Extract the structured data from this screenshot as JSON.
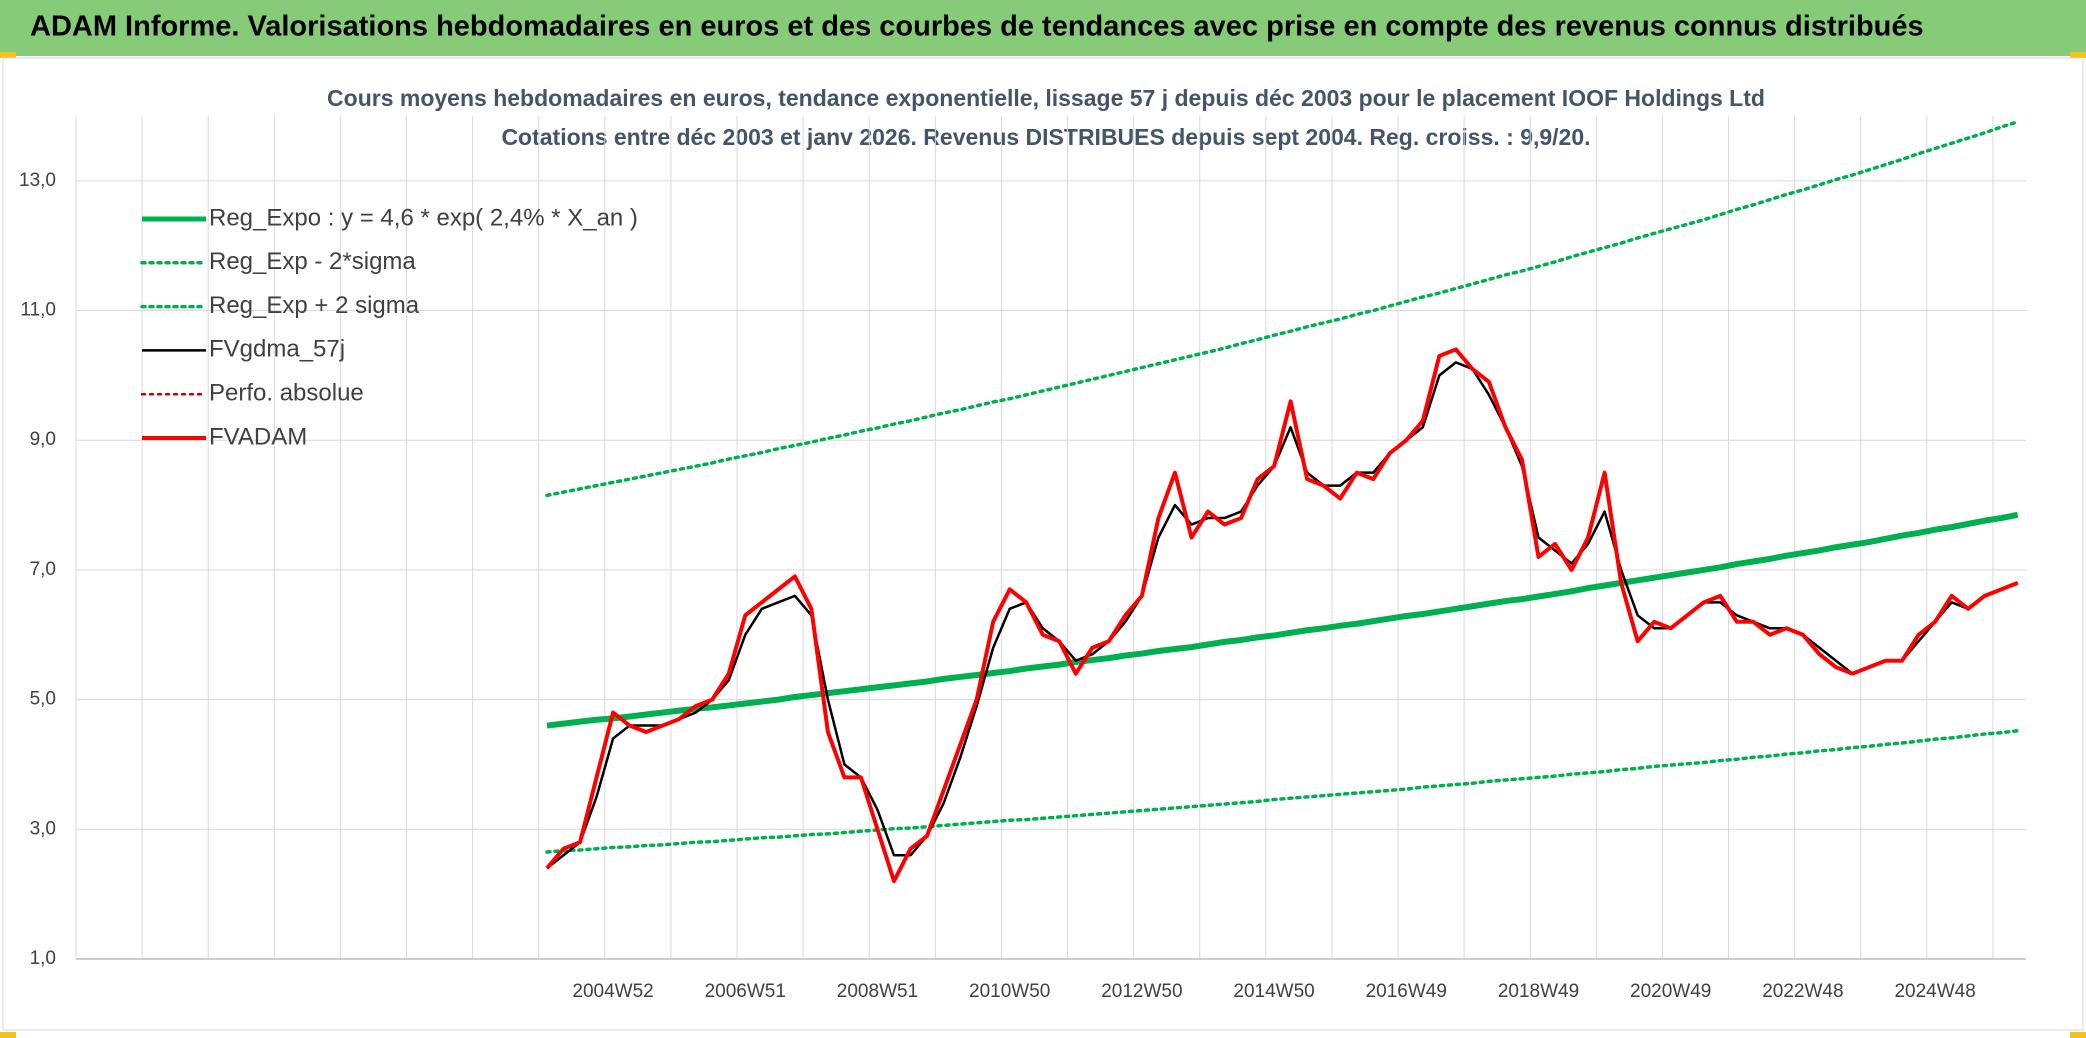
{
  "header": {
    "title": "ADAM Informe. Valorisations hebdomadaires en euros et des courbes de tendances avec prise en compte des revenus connus distribués"
  },
  "chart_data": {
    "type": "line",
    "title": "Cours moyens hebdomadaires en euros, tendance exponentielle, lissage 57 j depuis déc 2003 pour le placement IOOF Holdings Ltd",
    "subtitle": "Cotations entre déc 2003 et janv 2026. Revenus DISTRIBUES depuis sept 2004. Reg. croiss. : 9,9/20.",
    "categories": [
      null,
      null,
      null,
      null,
      null,
      null,
      null,
      null,
      null,
      null,
      null,
      null,
      null,
      null,
      null,
      null,
      null,
      null,
      null,
      null,
      null,
      null,
      null,
      null,
      null,
      null,
      null,
      null,
      null,
      null,
      null,
      null,
      "2004W52",
      null,
      null,
      null,
      null,
      null,
      null,
      null,
      "2006W51",
      null,
      null,
      null,
      null,
      null,
      null,
      null,
      "2008W51",
      null,
      null,
      null,
      null,
      null,
      null,
      null,
      "2010W50",
      null,
      null,
      null,
      null,
      null,
      null,
      null,
      "2012W50",
      null,
      null,
      null,
      null,
      null,
      null,
      null,
      "2014W50",
      null,
      null,
      null,
      null,
      null,
      null,
      null,
      "2016W49",
      null,
      null,
      null,
      null,
      null,
      null,
      null,
      "2018W49",
      null,
      null,
      null,
      null,
      null,
      null,
      null,
      "2020W49",
      null,
      null,
      null,
      null,
      null,
      null,
      null,
      "2022W48",
      null,
      null,
      null,
      null,
      null,
      null,
      null,
      "2024W48",
      null,
      null,
      null,
      null,
      null
    ],
    "ylim": [
      1,
      14
    ],
    "yticks": [
      {
        "value": 1,
        "label": "1,0"
      },
      {
        "value": 3,
        "label": "3,0"
      },
      {
        "value": 5,
        "label": "5,0"
      },
      {
        "value": 7,
        "label": "7,0"
      },
      {
        "value": 9,
        "label": "9,0"
      },
      {
        "value": 11,
        "label": "11,0"
      },
      {
        "value": 13,
        "label": "13,0"
      }
    ],
    "grid": true,
    "series": [
      {
        "name": "Reg_Expo : y = 4,6 * exp( 2,4% *  X_an )",
        "color": "#00b050",
        "style": "solid",
        "width": 6,
        "values": [
          null,
          null,
          null,
          null,
          null,
          null,
          null,
          null,
          null,
          null,
          null,
          null,
          null,
          null,
          null,
          null,
          null,
          null,
          null,
          null,
          null,
          null,
          null,
          null,
          null,
          null,
          null,
          null,
          4.6,
          4.63,
          4.66,
          4.69,
          4.71,
          4.74,
          4.77,
          4.8,
          4.83,
          4.86,
          4.88,
          4.91,
          4.94,
          4.97,
          5.0,
          5.04,
          5.07,
          5.1,
          5.13,
          5.16,
          5.19,
          5.22,
          5.25,
          5.28,
          5.32,
          5.35,
          5.38,
          5.41,
          5.44,
          5.48,
          5.51,
          5.54,
          5.58,
          5.61,
          5.64,
          5.68,
          5.71,
          5.75,
          5.78,
          5.81,
          5.85,
          5.89,
          5.92,
          5.96,
          5.99,
          6.03,
          6.07,
          6.1,
          6.14,
          6.17,
          6.21,
          6.25,
          6.29,
          6.32,
          6.36,
          6.4,
          6.44,
          6.48,
          6.52,
          6.55,
          6.59,
          6.63,
          6.67,
          6.72,
          6.76,
          6.8,
          6.84,
          6.88,
          6.92,
          6.96,
          7.0,
          7.04,
          7.09,
          7.13,
          7.17,
          7.22,
          7.26,
          7.3,
          7.35,
          7.39,
          7.43,
          7.48,
          7.53,
          7.57,
          7.62,
          7.66,
          7.71,
          7.76,
          7.8,
          7.85
        ]
      },
      {
        "name": "Reg_Exp - 2*sigma",
        "color": "#00b050",
        "style": "dotted",
        "width": 3.5,
        "values": [
          null,
          null,
          null,
          null,
          null,
          null,
          null,
          null,
          null,
          null,
          null,
          null,
          null,
          null,
          null,
          null,
          null,
          null,
          null,
          null,
          null,
          null,
          null,
          null,
          null,
          null,
          null,
          null,
          2.65,
          2.67,
          2.68,
          2.7,
          2.72,
          2.73,
          2.75,
          2.76,
          2.78,
          2.8,
          2.81,
          2.83,
          2.85,
          2.87,
          2.88,
          2.9,
          2.92,
          2.93,
          2.95,
          2.97,
          2.99,
          3.01,
          3.02,
          3.04,
          3.06,
          3.08,
          3.1,
          3.12,
          3.14,
          3.15,
          3.17,
          3.19,
          3.21,
          3.23,
          3.25,
          3.27,
          3.29,
          3.31,
          3.33,
          3.35,
          3.37,
          3.39,
          3.41,
          3.43,
          3.46,
          3.48,
          3.5,
          3.52,
          3.54,
          3.56,
          3.58,
          3.6,
          3.62,
          3.65,
          3.67,
          3.69,
          3.71,
          3.74,
          3.76,
          3.78,
          3.8,
          3.82,
          3.85,
          3.87,
          3.89,
          3.92,
          3.94,
          3.97,
          3.99,
          4.01,
          4.03,
          4.06,
          4.08,
          4.11,
          4.13,
          4.16,
          4.18,
          4.21,
          4.23,
          4.26,
          4.28,
          4.31,
          4.33,
          4.36,
          4.39,
          4.41,
          4.44,
          4.47,
          4.49,
          4.52
        ]
      },
      {
        "name": "Reg_Exp + 2 sigma",
        "color": "#00b050",
        "style": "dotted",
        "width": 3.5,
        "values": [
          null,
          null,
          null,
          null,
          null,
          null,
          null,
          null,
          null,
          null,
          null,
          null,
          null,
          null,
          null,
          null,
          null,
          null,
          null,
          null,
          null,
          null,
          null,
          null,
          null,
          null,
          null,
          null,
          8.15,
          8.2,
          8.25,
          8.3,
          8.35,
          8.4,
          8.45,
          8.5,
          8.55,
          8.6,
          8.65,
          8.71,
          8.76,
          8.81,
          8.87,
          8.92,
          8.97,
          9.03,
          9.08,
          9.14,
          9.19,
          9.25,
          9.3,
          9.36,
          9.42,
          9.47,
          9.53,
          9.59,
          9.64,
          9.7,
          9.76,
          9.82,
          9.88,
          9.94,
          10.0,
          10.06,
          10.12,
          10.18,
          10.24,
          10.3,
          10.36,
          10.42,
          10.49,
          10.55,
          10.62,
          10.68,
          10.75,
          10.81,
          10.87,
          10.94,
          11.0,
          11.07,
          11.14,
          11.21,
          11.27,
          11.34,
          11.41,
          11.48,
          11.55,
          11.61,
          11.68,
          11.75,
          11.83,
          11.9,
          11.97,
          12.04,
          12.12,
          12.19,
          12.26,
          12.33,
          12.4,
          12.48,
          12.56,
          12.63,
          12.71,
          12.79,
          12.86,
          12.94,
          13.02,
          13.09,
          13.17,
          13.25,
          13.33,
          13.42,
          13.5,
          13.58,
          13.66,
          13.74,
          13.83,
          13.91
        ]
      },
      {
        "name": "FVgdma_57j",
        "color": "#000000",
        "style": "solid",
        "width": 2.5,
        "values": [
          null,
          null,
          null,
          null,
          null,
          null,
          null,
          null,
          null,
          null,
          null,
          null,
          null,
          null,
          null,
          null,
          null,
          null,
          null,
          null,
          null,
          null,
          null,
          null,
          null,
          null,
          null,
          null,
          2.4,
          2.6,
          2.8,
          3.5,
          4.4,
          4.6,
          4.6,
          4.6,
          4.7,
          4.8,
          5.0,
          5.3,
          6.0,
          6.4,
          6.5,
          6.6,
          6.3,
          5.0,
          4.0,
          3.8,
          3.3,
          2.6,
          2.6,
          2.9,
          3.4,
          4.1,
          4.9,
          5.8,
          6.4,
          6.5,
          6.1,
          5.9,
          5.6,
          5.7,
          5.9,
          6.2,
          6.6,
          7.5,
          8.0,
          7.7,
          7.8,
          7.8,
          7.9,
          8.3,
          8.6,
          9.2,
          8.5,
          8.3,
          8.3,
          8.5,
          8.5,
          8.8,
          9.0,
          9.2,
          10.0,
          10.2,
          10.1,
          9.7,
          9.2,
          8.6,
          7.5,
          7.3,
          7.1,
          7.4,
          7.9,
          7.0,
          6.3,
          6.1,
          6.1,
          6.3,
          6.5,
          6.5,
          6.3,
          6.2,
          6.1,
          6.1,
          6.0,
          5.8,
          5.6,
          5.4,
          5.5,
          5.6,
          5.6,
          5.9,
          6.2,
          6.5,
          6.4,
          6.6,
          6.7,
          6.8
        ]
      },
      {
        "name": "Perfo. absolue",
        "color": "#c00000",
        "style": "dotted",
        "width": 2.5,
        "values": [
          null,
          null,
          null,
          null,
          null,
          null,
          null,
          null,
          null,
          null,
          null,
          null,
          null,
          null,
          null,
          null,
          null,
          null,
          null,
          null,
          null,
          null,
          null,
          null,
          null,
          null,
          null,
          null,
          null,
          null,
          null,
          null,
          null,
          null,
          null,
          null,
          null,
          null,
          null,
          null,
          null,
          null,
          null,
          null,
          null,
          null,
          null,
          null,
          null,
          null,
          null,
          null,
          null,
          null,
          null,
          null,
          null,
          null,
          null,
          null,
          null,
          null,
          null,
          null,
          null,
          null,
          null,
          null,
          null,
          null,
          null,
          null,
          null,
          null,
          null,
          null,
          null,
          null,
          null,
          null,
          null,
          null,
          null,
          null,
          null,
          null,
          null,
          null,
          null,
          null,
          null,
          null,
          null,
          null,
          null,
          null,
          null,
          null,
          null,
          null,
          null,
          null,
          null,
          null,
          null,
          null,
          null,
          null,
          null,
          null,
          null,
          null,
          null,
          null,
          null,
          null,
          null,
          null
        ]
      },
      {
        "name": "FVADAM",
        "color": "#ff0000",
        "style": "solid",
        "width": 4,
        "values": [
          null,
          null,
          null,
          null,
          null,
          null,
          null,
          null,
          null,
          null,
          null,
          null,
          null,
          null,
          null,
          null,
          null,
          null,
          null,
          null,
          null,
          null,
          null,
          null,
          null,
          null,
          null,
          null,
          2.4,
          2.7,
          2.8,
          3.8,
          4.8,
          4.6,
          4.5,
          4.6,
          4.7,
          4.9,
          5.0,
          5.4,
          6.3,
          6.5,
          6.7,
          6.9,
          6.4,
          4.5,
          3.8,
          3.8,
          3.0,
          2.2,
          2.7,
          2.9,
          3.6,
          4.3,
          5.0,
          6.2,
          6.7,
          6.5,
          6.0,
          5.9,
          5.4,
          5.8,
          5.9,
          6.3,
          6.6,
          7.8,
          8.5,
          7.5,
          7.9,
          7.7,
          7.8,
          8.4,
          8.6,
          9.6,
          8.4,
          8.3,
          8.1,
          8.5,
          8.4,
          8.8,
          9.0,
          9.3,
          10.3,
          10.4,
          10.1,
          9.9,
          9.2,
          8.7,
          7.2,
          7.4,
          7.0,
          7.5,
          8.5,
          6.8,
          5.9,
          6.2,
          6.1,
          6.3,
          6.5,
          6.6,
          6.2,
          6.2,
          6.0,
          6.1,
          6.0,
          5.7,
          5.5,
          5.4,
          5.5,
          5.6,
          5.6,
          6.0,
          6.2,
          6.6,
          6.4,
          6.6,
          6.7,
          6.8
        ]
      }
    ]
  }
}
